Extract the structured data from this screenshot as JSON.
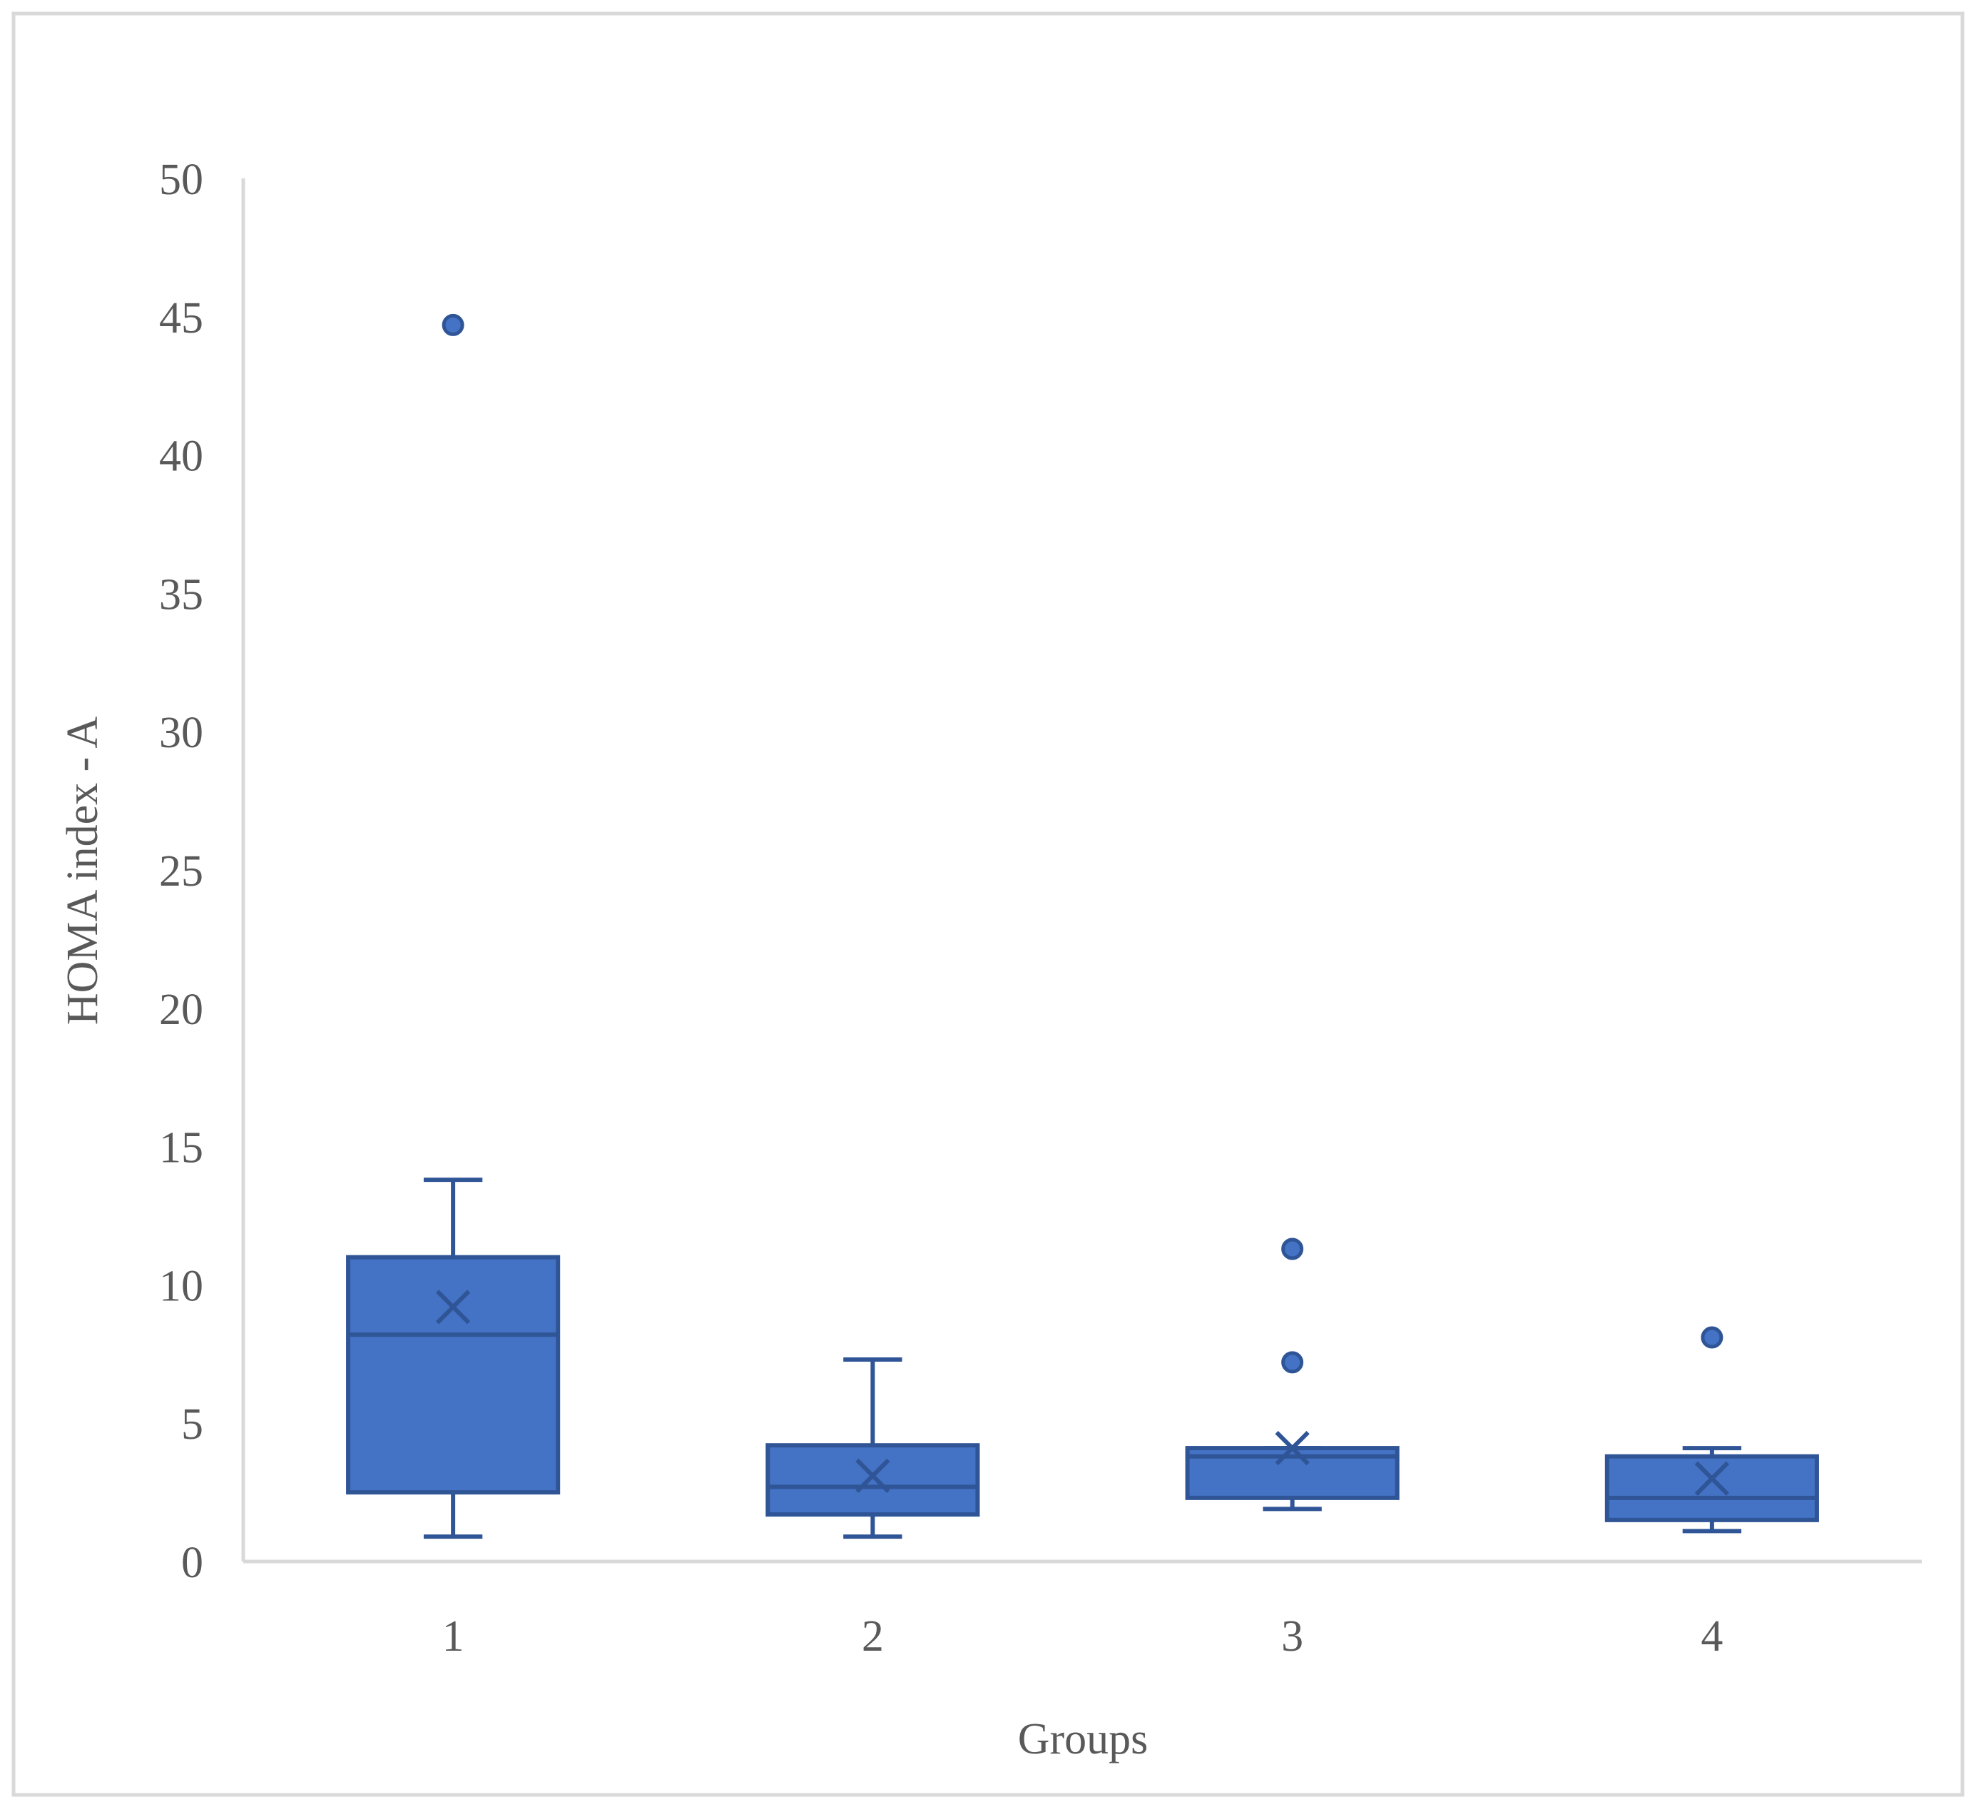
{
  "chart_data": {
    "type": "box",
    "xlabel": "Groups",
    "ylabel": "HOMA index - A",
    "ylim": [
      0,
      50
    ],
    "yticks": [
      0,
      5,
      10,
      15,
      20,
      25,
      30,
      35,
      40,
      45,
      50
    ],
    "categories": [
      "1",
      "2",
      "3",
      "4"
    ],
    "grid": false,
    "legend": "none",
    "colors": {
      "box_fill": "#4472C4",
      "box_stroke": "#2F5597",
      "axis": "#D9D9D9",
      "text": "#595959",
      "border": "#D9D9D9"
    },
    "groups": [
      {
        "category": "1",
        "whisker_low": 0.9,
        "q1": 2.5,
        "median": 8.2,
        "q3": 11.0,
        "whisker_high": 13.8,
        "mean": 9.2,
        "outliers": [
          44.7
        ]
      },
      {
        "category": "2",
        "whisker_low": 0.9,
        "q1": 1.7,
        "median": 2.7,
        "q3": 4.2,
        "whisker_high": 7.3,
        "mean": 3.1,
        "outliers": []
      },
      {
        "category": "3",
        "whisker_low": 1.9,
        "q1": 2.3,
        "median": 3.8,
        "q3": 4.1,
        "whisker_high": 4.1,
        "mean": 4.1,
        "outliers": [
          7.2,
          11.3
        ]
      },
      {
        "category": "4",
        "whisker_low": 1.1,
        "q1": 1.5,
        "median": 2.3,
        "q3": 3.8,
        "whisker_high": 4.1,
        "mean": 3.0,
        "outliers": [
          8.1
        ]
      }
    ]
  }
}
